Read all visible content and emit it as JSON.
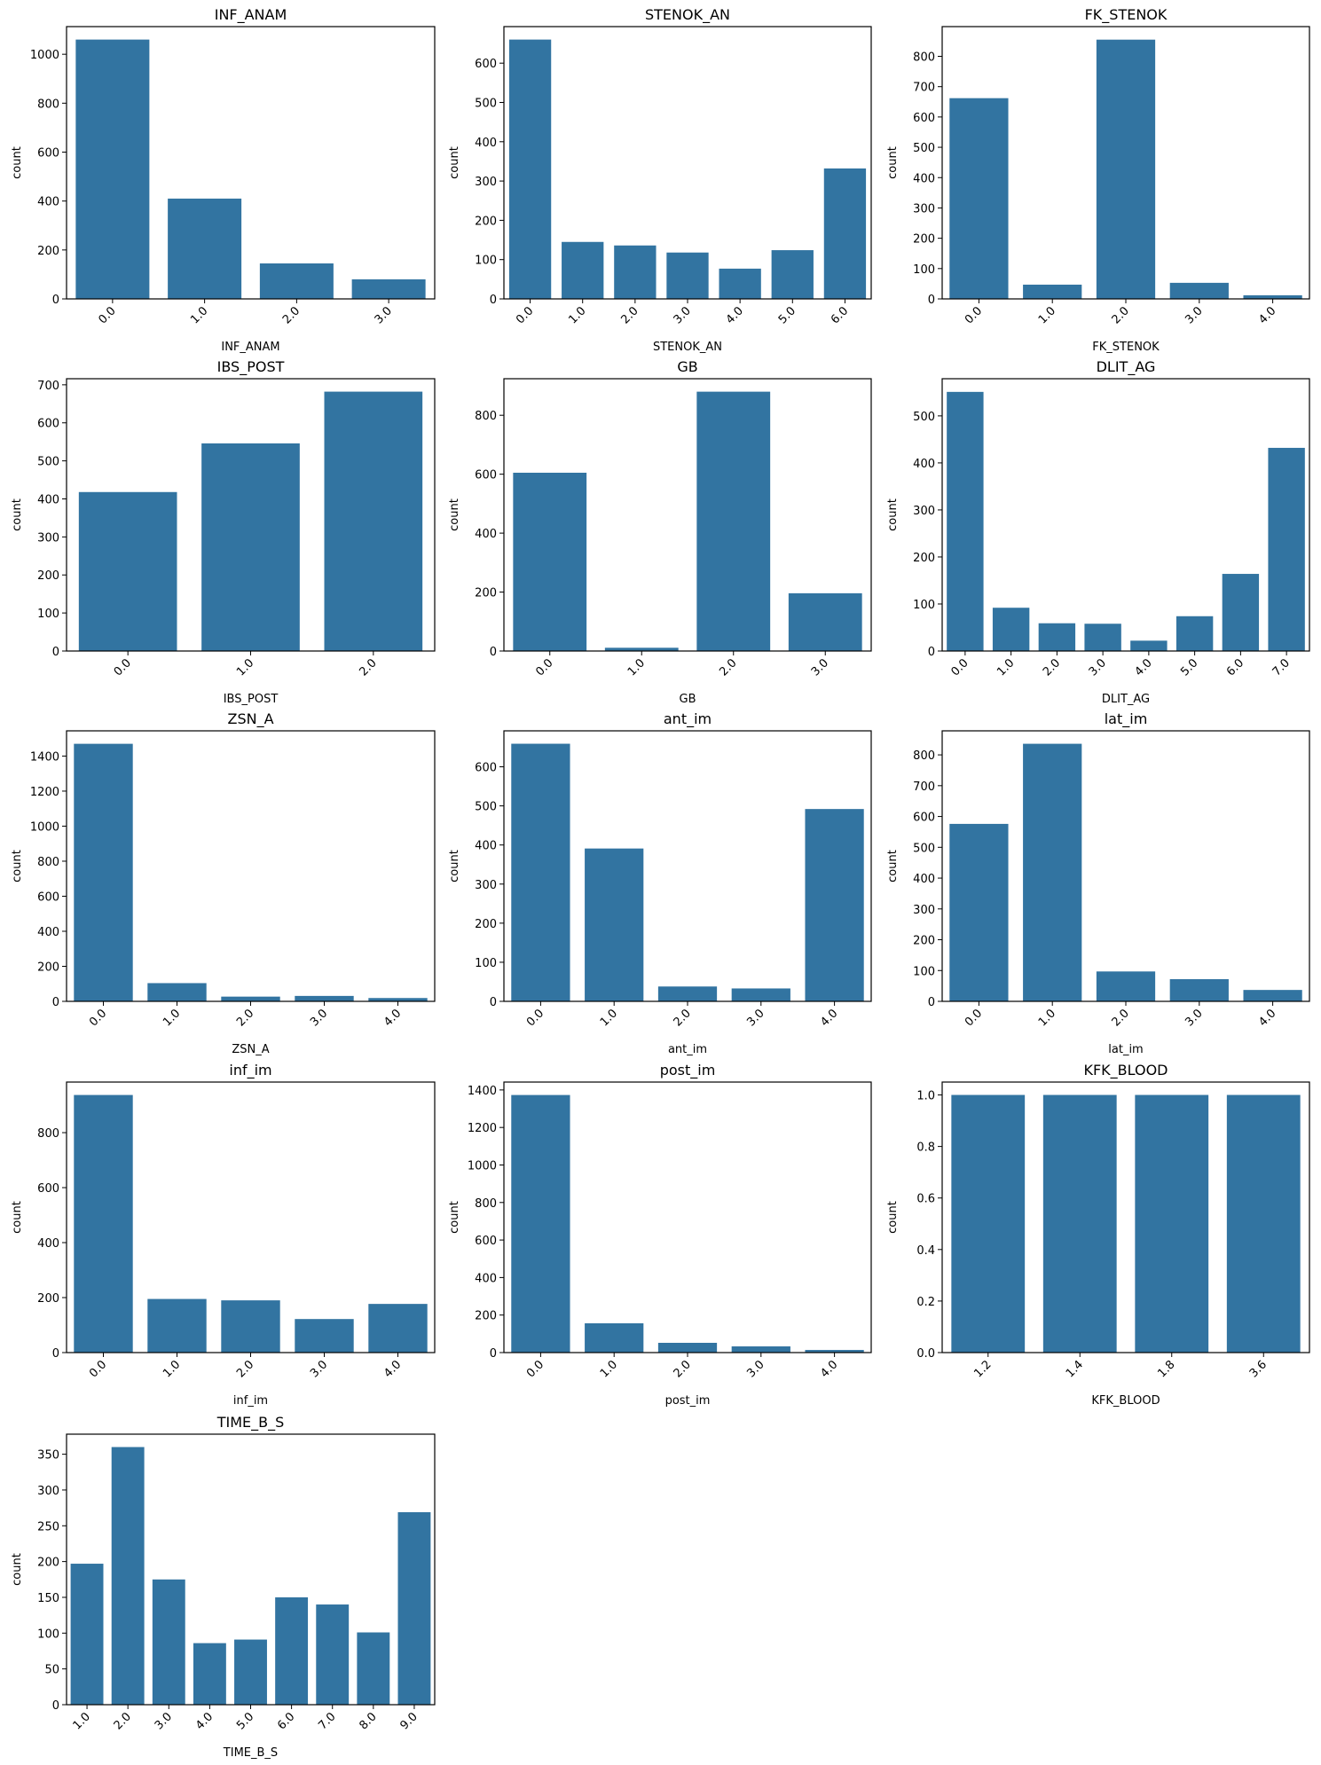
{
  "bar_color": "#3274a1",
  "chart_data": [
    {
      "type": "bar",
      "title": "INF_ANAM",
      "xlabel": "INF_ANAM",
      "ylabel": "count",
      "categories": [
        "0.0",
        "1.0",
        "2.0",
        "3.0"
      ],
      "values": [
        1060,
        410,
        145,
        80
      ],
      "ylim": [
        0,
        1113
      ],
      "yticks": [
        0,
        200,
        400,
        600,
        800,
        1000
      ],
      "grid": false
    },
    {
      "type": "bar",
      "title": "STENOK_AN",
      "xlabel": "STENOK_AN",
      "ylabel": "count",
      "categories": [
        "0.0",
        "1.0",
        "2.0",
        "3.0",
        "4.0",
        "5.0",
        "6.0"
      ],
      "values": [
        660,
        145,
        136,
        118,
        77,
        124,
        332
      ],
      "ylim": [
        0,
        693
      ],
      "yticks": [
        0,
        100,
        200,
        300,
        400,
        500,
        600
      ],
      "grid": false
    },
    {
      "type": "bar",
      "title": "FK_STENOK",
      "xlabel": "FK_STENOK",
      "ylabel": "count",
      "categories": [
        "0.0",
        "1.0",
        "2.0",
        "3.0",
        "4.0"
      ],
      "values": [
        662,
        47,
        855,
        53,
        12
      ],
      "ylim": [
        0,
        898
      ],
      "yticks": [
        0,
        100,
        200,
        300,
        400,
        500,
        600,
        700,
        800
      ],
      "grid": false
    },
    {
      "type": "bar",
      "title": "IBS_POST",
      "xlabel": "IBS_POST",
      "ylabel": "count",
      "categories": [
        "0.0",
        "1.0",
        "2.0"
      ],
      "values": [
        418,
        546,
        682
      ],
      "ylim": [
        0,
        716
      ],
      "yticks": [
        0,
        100,
        200,
        300,
        400,
        500,
        600,
        700
      ],
      "grid": false
    },
    {
      "type": "bar",
      "title": "GB",
      "xlabel": "GB",
      "ylabel": "count",
      "categories": [
        "0.0",
        "1.0",
        "2.0",
        "3.0"
      ],
      "values": [
        605,
        11,
        880,
        196
      ],
      "ylim": [
        0,
        924
      ],
      "yticks": [
        0,
        200,
        400,
        600,
        800
      ],
      "grid": false
    },
    {
      "type": "bar",
      "title": "DLIT_AG",
      "xlabel": "DLIT_AG",
      "ylabel": "count",
      "categories": [
        "0.0",
        "1.0",
        "2.0",
        "3.0",
        "4.0",
        "5.0",
        "6.0",
        "7.0"
      ],
      "values": [
        551,
        92,
        59,
        58,
        22,
        74,
        164,
        432
      ],
      "ylim": [
        0,
        579
      ],
      "yticks": [
        0,
        100,
        200,
        300,
        400,
        500
      ],
      "grid": false
    },
    {
      "type": "bar",
      "title": "ZSN_A",
      "xlabel": "ZSN_A",
      "ylabel": "count",
      "categories": [
        "0.0",
        "1.0",
        "2.0",
        "3.0",
        "4.0"
      ],
      "values": [
        1470,
        104,
        27,
        31,
        19
      ],
      "ylim": [
        0,
        1544
      ],
      "yticks": [
        0,
        200,
        400,
        600,
        800,
        1000,
        1200,
        1400
      ],
      "grid": false
    },
    {
      "type": "bar",
      "title": "ant_im",
      "xlabel": "ant_im",
      "ylabel": "count",
      "categories": [
        "0.0",
        "1.0",
        "2.0",
        "3.0",
        "4.0"
      ],
      "values": [
        659,
        391,
        38,
        33,
        492
      ],
      "ylim": [
        0,
        692
      ],
      "yticks": [
        0,
        100,
        200,
        300,
        400,
        500,
        600
      ],
      "grid": false
    },
    {
      "type": "bar",
      "title": "lat_im",
      "xlabel": "lat_im",
      "ylabel": "count",
      "categories": [
        "0.0",
        "1.0",
        "2.0",
        "3.0",
        "4.0"
      ],
      "values": [
        576,
        836,
        97,
        72,
        37
      ],
      "ylim": [
        0,
        878
      ],
      "yticks": [
        0,
        100,
        200,
        300,
        400,
        500,
        600,
        700,
        800
      ],
      "grid": false
    },
    {
      "type": "bar",
      "title": "inf_im",
      "xlabel": "inf_im",
      "ylabel": "count",
      "categories": [
        "0.0",
        "1.0",
        "2.0",
        "3.0",
        "4.0"
      ],
      "values": [
        937,
        195,
        190,
        122,
        177
      ],
      "ylim": [
        0,
        984
      ],
      "yticks": [
        0,
        200,
        400,
        600,
        800
      ],
      "grid": false
    },
    {
      "type": "bar",
      "title": "post_im",
      "xlabel": "post_im",
      "ylabel": "count",
      "categories": [
        "0.0",
        "1.0",
        "2.0",
        "3.0",
        "4.0"
      ],
      "values": [
        1373,
        156,
        52,
        33,
        14
      ],
      "ylim": [
        0,
        1442
      ],
      "yticks": [
        0,
        200,
        400,
        600,
        800,
        1000,
        1200,
        1400
      ],
      "grid": false
    },
    {
      "type": "bar",
      "title": "KFK_BLOOD",
      "xlabel": "KFK_BLOOD",
      "ylabel": "count",
      "categories": [
        "1.2",
        "1.4",
        "1.8",
        "3.6"
      ],
      "values": [
        1,
        1,
        1,
        1
      ],
      "ylim": [
        0,
        1.05
      ],
      "yticks": [
        0.0,
        0.2,
        0.4,
        0.6,
        0.8,
        1.0
      ],
      "ytick_decimals": 1,
      "grid": false
    },
    {
      "type": "bar",
      "title": "TIME_B_S",
      "xlabel": "TIME_B_S",
      "ylabel": "count",
      "categories": [
        "1.0",
        "2.0",
        "3.0",
        "4.0",
        "5.0",
        "6.0",
        "7.0",
        "8.0",
        "9.0"
      ],
      "values": [
        197,
        360,
        175,
        86,
        91,
        150,
        140,
        101,
        269
      ],
      "ylim": [
        0,
        378
      ],
      "yticks": [
        0,
        50,
        100,
        150,
        200,
        250,
        300,
        350
      ],
      "grid": false
    }
  ]
}
